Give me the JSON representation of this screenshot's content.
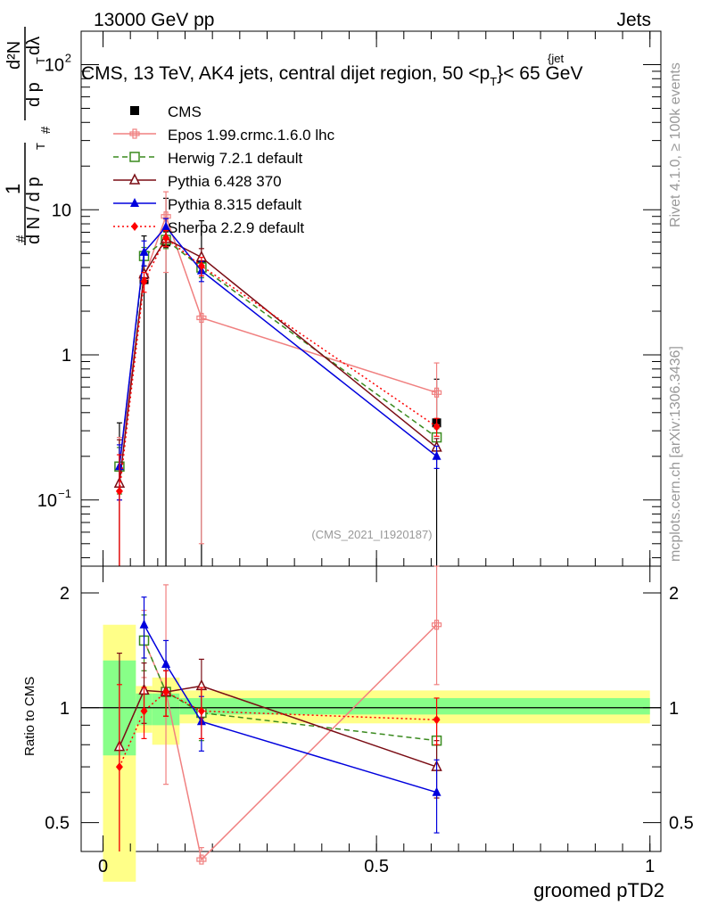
{
  "header": {
    "left_label": "13000 GeV pp",
    "right_label": "Jets",
    "side_label_top": "Rivet 4.1.0, ≥ 100k events",
    "side_label_bottom": "mcplots.cern.ch [arXiv:1306.3436]",
    "analysis_id": "(CMS_2021_I1920187)"
  },
  "chart_data": [
    {
      "type": "scatter",
      "panel": "main",
      "title": "CMS, 13 TeV, AK4 jets, central dijet region, 50 < p_T^{jet} < 65 GeV",
      "title_main": "CMS, 13 TeV, AK4 jets, central dijet region, 50 <p",
      "title_tail": "}< 65 GeV",
      "title_sub": "T",
      "title_sup": "{jet",
      "ylabel": "1/dN/dp_T d²N/dp_T dλ",
      "ylabel_parts": {
        "hash": "#",
        "one": "1",
        "dN": "d N / d p",
        "T": "T",
        "d2N": "d²N",
        "dp": "d p",
        "dl": "dλ"
      },
      "yscale": "log",
      "ylim": [
        0.035,
        170
      ],
      "xlim": [
        -0.04,
        1.02
      ],
      "y_ticks": [
        {
          "v": 0.1,
          "label": "10",
          "exp": "−1"
        },
        {
          "v": 1,
          "label": "1",
          "exp": ""
        },
        {
          "v": 10,
          "label": "10",
          "exp": ""
        },
        {
          "v": 100,
          "label": "10",
          "exp": "2"
        }
      ],
      "legend_position": "top-left",
      "series": [
        {
          "name": "CMS",
          "color": "#000000",
          "marker": "square",
          "line": "none",
          "x": [
            0.03,
            0.075,
            0.115,
            0.18,
            0.61
          ],
          "y": [
            0.17,
            3.3,
            6.0,
            4.2,
            0.34
          ],
          "err": [
            [
              0.17,
              0.17
            ],
            [
              3.3,
              3.3
            ],
            [
              6.0,
              6.0
            ],
            [
              4.2,
              4.2
            ],
            [
              0.34,
              0.34
            ]
          ]
        },
        {
          "name": "Epos 1.99.crmc.1.6.0 lhc",
          "color": "#f08080",
          "marker": "cross",
          "line": "solid",
          "x": [
            0.03,
            0.075,
            0.115,
            0.18,
            0.61
          ],
          "y": [
            0.17,
            3.4,
            9.0,
            1.8,
            0.55
          ],
          "err": [
            [
              0.07,
              0.1
            ],
            [
              0.3,
              0.4
            ],
            [
              5.3,
              4.3
            ],
            [
              1.75,
              2.3
            ],
            [
              0.22,
              0.33
            ]
          ]
        },
        {
          "name": "Herwig 7.2.1 default",
          "color": "#3a8a1e",
          "marker": "open-square",
          "line": "dashed",
          "x": [
            0.03,
            0.075,
            0.115,
            0.18,
            0.61
          ],
          "y": [
            0.17,
            4.8,
            6.2,
            4.0,
            0.27
          ],
          "err": [
            [
              0.06,
              0.06
            ],
            [
              0.7,
              0.7
            ],
            [
              0.8,
              0.8
            ],
            [
              0.6,
              0.6
            ],
            [
              0.04,
              0.04
            ]
          ]
        },
        {
          "name": "Pythia 6.428 370",
          "color": "#7a0c14",
          "marker": "open-triangle",
          "line": "solid",
          "x": [
            0.03,
            0.075,
            0.115,
            0.18,
            0.61
          ],
          "y": [
            0.13,
            3.6,
            6.3,
            4.7,
            0.23
          ],
          "err": [
            [
              0.1,
              0.13
            ],
            [
              0.5,
              0.5
            ],
            [
              0.8,
              0.8
            ],
            [
              0.7,
              0.7
            ],
            [
              0.035,
              0.035
            ]
          ]
        },
        {
          "name": "Pythia 8.315 default",
          "color": "#0000dd",
          "marker": "triangle",
          "line": "solid",
          "x": [
            0.03,
            0.075,
            0.115,
            0.18,
            0.61
          ],
          "y": [
            0.17,
            5.1,
            7.6,
            3.8,
            0.2
          ],
          "err": [
            [
              0.07,
              0.07
            ],
            [
              1.0,
              1.0
            ],
            [
              1.1,
              1.1
            ],
            [
              0.6,
              0.6
            ],
            [
              0.035,
              0.035
            ]
          ]
        },
        {
          "name": "Sherpa 2.2.9 default",
          "color": "#ff0000",
          "marker": "diamond",
          "line": "dotted",
          "x": [
            0.03,
            0.075,
            0.115,
            0.18,
            0.61
          ],
          "y": [
            0.115,
            3.2,
            6.4,
            4.1,
            0.32
          ],
          "err": [
            [
              0.08,
              0.09
            ],
            [
              0.5,
              0.5
            ],
            [
              0.8,
              0.8
            ],
            [
              0.6,
              0.6
            ],
            [
              0.045,
              0.045
            ]
          ]
        }
      ]
    },
    {
      "type": "scatter",
      "panel": "ratio",
      "ylabel": "Ratio to CMS",
      "xlabel": "groomed pTD2",
      "yscale": "log",
      "ylim": [
        0.42,
        2.35
      ],
      "xlim": [
        -0.04,
        1.02
      ],
      "x_ticks": [
        0,
        0.5,
        1
      ],
      "y_ticks": [
        0.5,
        1,
        2
      ],
      "bands": [
        {
          "x": [
            0.0,
            0.06
          ],
          "inner": [
            0.75,
            1.33
          ],
          "outer": [
            0.35,
            1.65
          ]
        },
        {
          "x": [
            0.06,
            0.09
          ],
          "inner": [
            0.9,
            1.09
          ],
          "outer": [
            0.86,
            1.14
          ]
        },
        {
          "x": [
            0.09,
            0.14
          ],
          "inner": [
            0.9,
            1.09
          ],
          "outer": [
            0.8,
            1.2
          ]
        },
        {
          "x": [
            0.14,
            1.0
          ],
          "inner": [
            0.96,
            1.06
          ],
          "outer": [
            0.91,
            1.11
          ]
        }
      ],
      "series": [
        {
          "name": "Epos 1.99.crmc.1.6.0 lhc",
          "color": "#f08080",
          "marker": "cross",
          "line": "solid",
          "x": [
            0.075,
            0.115,
            0.18,
            0.61
          ],
          "y": [
            1.5,
            1.1,
            0.4,
            1.65
          ],
          "err": [
            [
              0.3,
              0.3
            ],
            [
              0.47,
              1.0
            ],
            [
              0.03,
              0.03
            ],
            [
              0.5,
              0.9
            ]
          ]
        },
        {
          "name": "Herwig 7.2.1 default",
          "color": "#3a8a1e",
          "marker": "open-square",
          "line": "dashed",
          "x": [
            0.075,
            0.115,
            0.18,
            0.61
          ],
          "y": [
            1.5,
            1.1,
            0.97,
            0.82
          ],
          "err": [
            [
              0.25,
              0.25
            ],
            [
              0.15,
              0.15
            ],
            [
              0.15,
              0.15
            ],
            [
              0.12,
              0.12
            ]
          ]
        },
        {
          "name": "Pythia 6.428 370",
          "color": "#7a0c14",
          "marker": "open-triangle",
          "line": "solid",
          "x": [
            0.03,
            0.075,
            0.115,
            0.18,
            0.61
          ],
          "y": [
            0.79,
            1.11,
            1.1,
            1.14,
            0.7
          ],
          "err": [
            [
              0.5,
              0.6
            ],
            [
              0.2,
              0.2
            ],
            [
              0.15,
              0.15
            ],
            [
              0.2,
              0.2
            ],
            [
              0.12,
              0.12
            ]
          ]
        },
        {
          "name": "Pythia 8.315 default",
          "color": "#0000dd",
          "marker": "triangle",
          "line": "solid",
          "x": [
            0.075,
            0.115,
            0.18,
            0.61
          ],
          "y": [
            1.65,
            1.3,
            0.92,
            0.6
          ],
          "err": [
            [
              0.3,
              0.3
            ],
            [
              0.2,
              0.2
            ],
            [
              0.15,
              0.15
            ],
            [
              0.13,
              0.13
            ]
          ]
        },
        {
          "name": "Sherpa 2.2.9 default",
          "color": "#ff0000",
          "marker": "diamond",
          "line": "dotted",
          "x": [
            0.03,
            0.075,
            0.115,
            0.18,
            0.61
          ],
          "y": [
            0.7,
            0.98,
            1.1,
            0.98,
            0.93
          ],
          "err": [
            [
              0.35,
              0.45
            ],
            [
              0.15,
              0.15
            ],
            [
              0.15,
              0.15
            ],
            [
              0.15,
              0.15
            ],
            [
              0.13,
              0.13
            ]
          ]
        }
      ]
    }
  ]
}
